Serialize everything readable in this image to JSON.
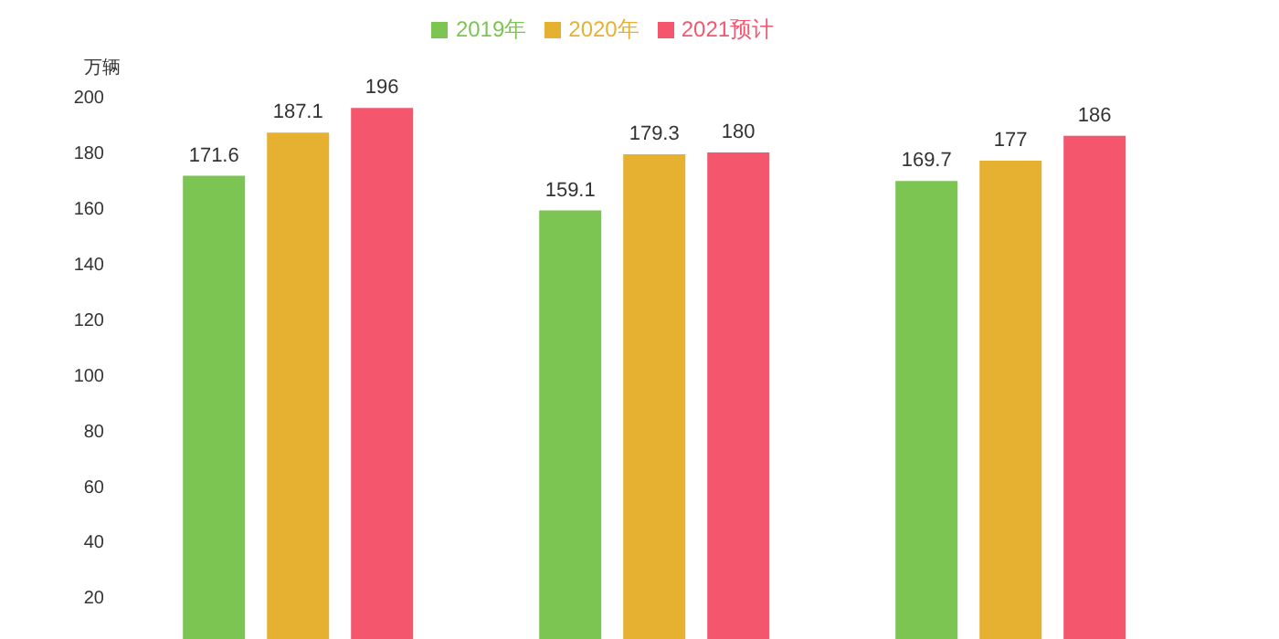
{
  "chart_data": {
    "type": "bar",
    "ylabel": "万辆",
    "categories": [
      null,
      null,
      null
    ],
    "series": [
      {
        "name": "2019年",
        "color": "#7dc552",
        "values": [
          171.6,
          159.1,
          169.7
        ]
      },
      {
        "name": "2020年",
        "color": "#e6b030",
        "values": [
          187.1,
          179.3,
          177
        ]
      },
      {
        "name": "2021预计",
        "color": "#f4566e",
        "values": [
          196,
          180,
          186
        ]
      }
    ],
    "ylim": [
      5,
      200
    ],
    "yticks": [
      20,
      40,
      60,
      80,
      100,
      120,
      140,
      160,
      180,
      200
    ],
    "grid": false,
    "legend": "top",
    "data_labels": true
  }
}
